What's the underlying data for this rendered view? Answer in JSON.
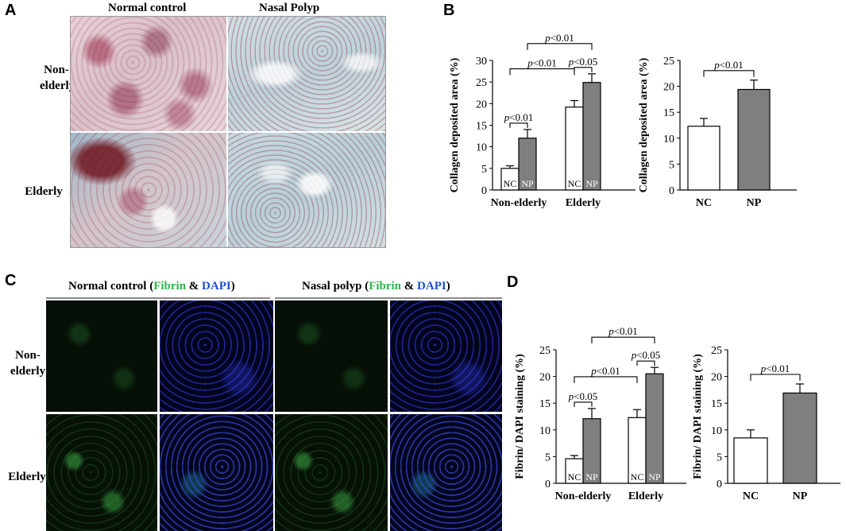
{
  "panels": {
    "A": {
      "letter": "A",
      "col_headers": [
        "Normal control",
        "Nasal Polyp"
      ],
      "row_labels": [
        "Non-elderly",
        "Elderly"
      ]
    },
    "B": {
      "letter": "B"
    },
    "C": {
      "letter": "C",
      "col_headers": [
        {
          "pre": "Normal control (",
          "fibrin": "Fibrin",
          "amp": " & ",
          "dapi": "DAPI",
          "post": ")"
        },
        {
          "pre": "Nasal polyp (",
          "fibrin": "Fibrin",
          "amp": " & ",
          "dapi": "DAPI",
          "post": ")"
        }
      ],
      "row_labels": [
        "Non-elderly",
        "Elderly"
      ]
    },
    "D": {
      "letter": "D"
    }
  },
  "colors": {
    "fibrin": "#2db84a",
    "dapi": "#1f4fd6",
    "np_bar": "#7f7f7f",
    "nc_bar": "#ffffff"
  },
  "chart_data": [
    {
      "type": "bar",
      "ylabel": "Collagen deposited area (%)",
      "ylim": [
        0,
        30
      ],
      "yticks": [
        0,
        5,
        10,
        15,
        20,
        25,
        30
      ],
      "groups": [
        "Non-elderly",
        "Elderly"
      ],
      "bar_labels": [
        "NC",
        "NP"
      ],
      "series": [
        {
          "name": "NC",
          "values": [
            5.0,
            19.2
          ],
          "errors": [
            0.6,
            1.5
          ]
        },
        {
          "name": "NP",
          "values": [
            12.0,
            24.9
          ],
          "errors": [
            2.0,
            2.0
          ]
        }
      ],
      "significance": [
        "p<0.01",
        "p<0.01",
        "p<0.05",
        "p<0.01"
      ]
    },
    {
      "type": "bar",
      "ylabel": "Collagen deposited area (%)",
      "ylim": [
        0,
        25
      ],
      "yticks": [
        0,
        5,
        10,
        15,
        20,
        25
      ],
      "categories": [
        "NC",
        "NP"
      ],
      "values": [
        12.3,
        19.4
      ],
      "errors": [
        1.5,
        1.8
      ],
      "significance": [
        "p<0.01"
      ]
    },
    {
      "type": "bar",
      "ylabel": "Fibrin/ DAPI staining (%)",
      "ylim": [
        0,
        25
      ],
      "yticks": [
        0,
        5,
        10,
        15,
        20,
        25
      ],
      "groups": [
        "Non-elderly",
        "Elderly"
      ],
      "bar_labels": [
        "NC",
        "NP"
      ],
      "series": [
        {
          "name": "NC",
          "values": [
            4.6,
            12.3
          ],
          "errors": [
            0.6,
            1.5
          ]
        },
        {
          "name": "NP",
          "values": [
            12.1,
            20.5
          ],
          "errors": [
            1.9,
            1.2
          ]
        }
      ],
      "significance": [
        "p<0.05",
        "p<0.01",
        "p<0.05",
        "p<0.01"
      ]
    },
    {
      "type": "bar",
      "ylabel": "Fibrin/ DAPI staining (%)",
      "ylim": [
        0,
        25
      ],
      "yticks": [
        0,
        5,
        10,
        15,
        20,
        25
      ],
      "categories": [
        "NC",
        "NP"
      ],
      "values": [
        8.5,
        16.9
      ],
      "errors": [
        1.5,
        1.7
      ],
      "significance": [
        "p<0.01"
      ]
    }
  ]
}
